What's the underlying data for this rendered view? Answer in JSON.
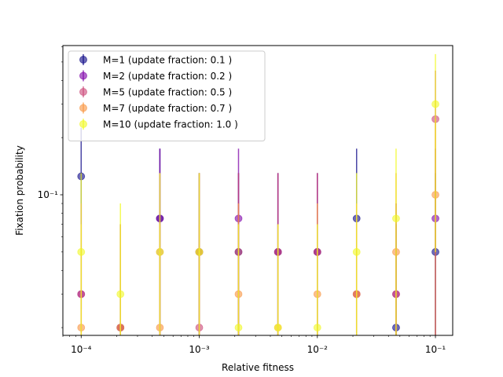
{
  "chart_data": {
    "type": "scatter",
    "xlabel": "Relative fitness",
    "ylabel": "Fixation probability",
    "x_scale": "log",
    "y_scale": "log",
    "xlim": [
      7e-05,
      0.14
    ],
    "ylim": [
      0.0182,
      0.61
    ],
    "x_ticks": [
      {
        "value": 0.0001,
        "label": "10⁻⁴"
      },
      {
        "value": 0.001,
        "label": "10⁻³"
      },
      {
        "value": 0.01,
        "label": "10⁻²"
      },
      {
        "value": 0.1,
        "label": "10⁻¹"
      }
    ],
    "y_ticks": [
      {
        "value": 0.1,
        "label": "10⁻¹"
      }
    ],
    "legend_position": "top-left",
    "x": [
      0.0001,
      0.000215,
      0.000464,
      0.001,
      0.00215,
      0.00464,
      0.01,
      0.0215,
      0.0464,
      0.1
    ],
    "series": [
      {
        "name": "M=1 (update fraction: 0.1 )",
        "color": "#0d0887",
        "values": [
          0.125,
          0.02,
          0.075,
          0.05,
          0.05,
          0.05,
          0.05,
          0.075,
          0.02,
          0.05
        ],
        "errors": [
          0.1,
          0.05,
          0.1,
          0.08,
          0.08,
          0.08,
          0.08,
          0.1,
          0.05,
          0.08
        ]
      },
      {
        "name": "M=2 (update fraction: 0.2 )",
        "color": "#7e03a8",
        "values": [
          0.03,
          0.02,
          0.075,
          0.05,
          0.075,
          0.05,
          0.05,
          0.03,
          0.03,
          0.075
        ],
        "errors": [
          0.06,
          0.05,
          0.1,
          0.08,
          0.1,
          0.08,
          0.08,
          0.06,
          0.06,
          0.1
        ]
      },
      {
        "name": "M=5 (update fraction: 0.5 )",
        "color": "#cc4778",
        "values": [
          0.03,
          0.02,
          0.05,
          0.02,
          0.05,
          0.05,
          0.05,
          0.03,
          0.03,
          0.25
        ],
        "errors": [
          0.06,
          0.05,
          0.08,
          0.05,
          0.08,
          0.08,
          0.08,
          0.06,
          0.06,
          0.2
        ]
      },
      {
        "name": "M=7 (update fraction: 0.7 )",
        "color": "#f89540",
        "values": [
          0.02,
          0.02,
          0.02,
          0.05,
          0.03,
          0.02,
          0.03,
          0.03,
          0.05,
          0.1
        ],
        "errors": [
          0.05,
          0.05,
          0.05,
          0.08,
          0.06,
          0.05,
          0.06,
          0.06,
          0.08,
          0.15
        ]
      },
      {
        "name": "M=10 (update fraction: 1.0 )",
        "color": "#f0f921",
        "values": [
          0.05,
          0.03,
          0.05,
          0.05,
          0.02,
          0.02,
          0.02,
          0.05,
          0.075,
          0.3
        ],
        "errors": [
          0.08,
          0.06,
          0.08,
          0.08,
          0.05,
          0.05,
          0.05,
          0.08,
          0.1,
          0.25
        ]
      }
    ]
  }
}
